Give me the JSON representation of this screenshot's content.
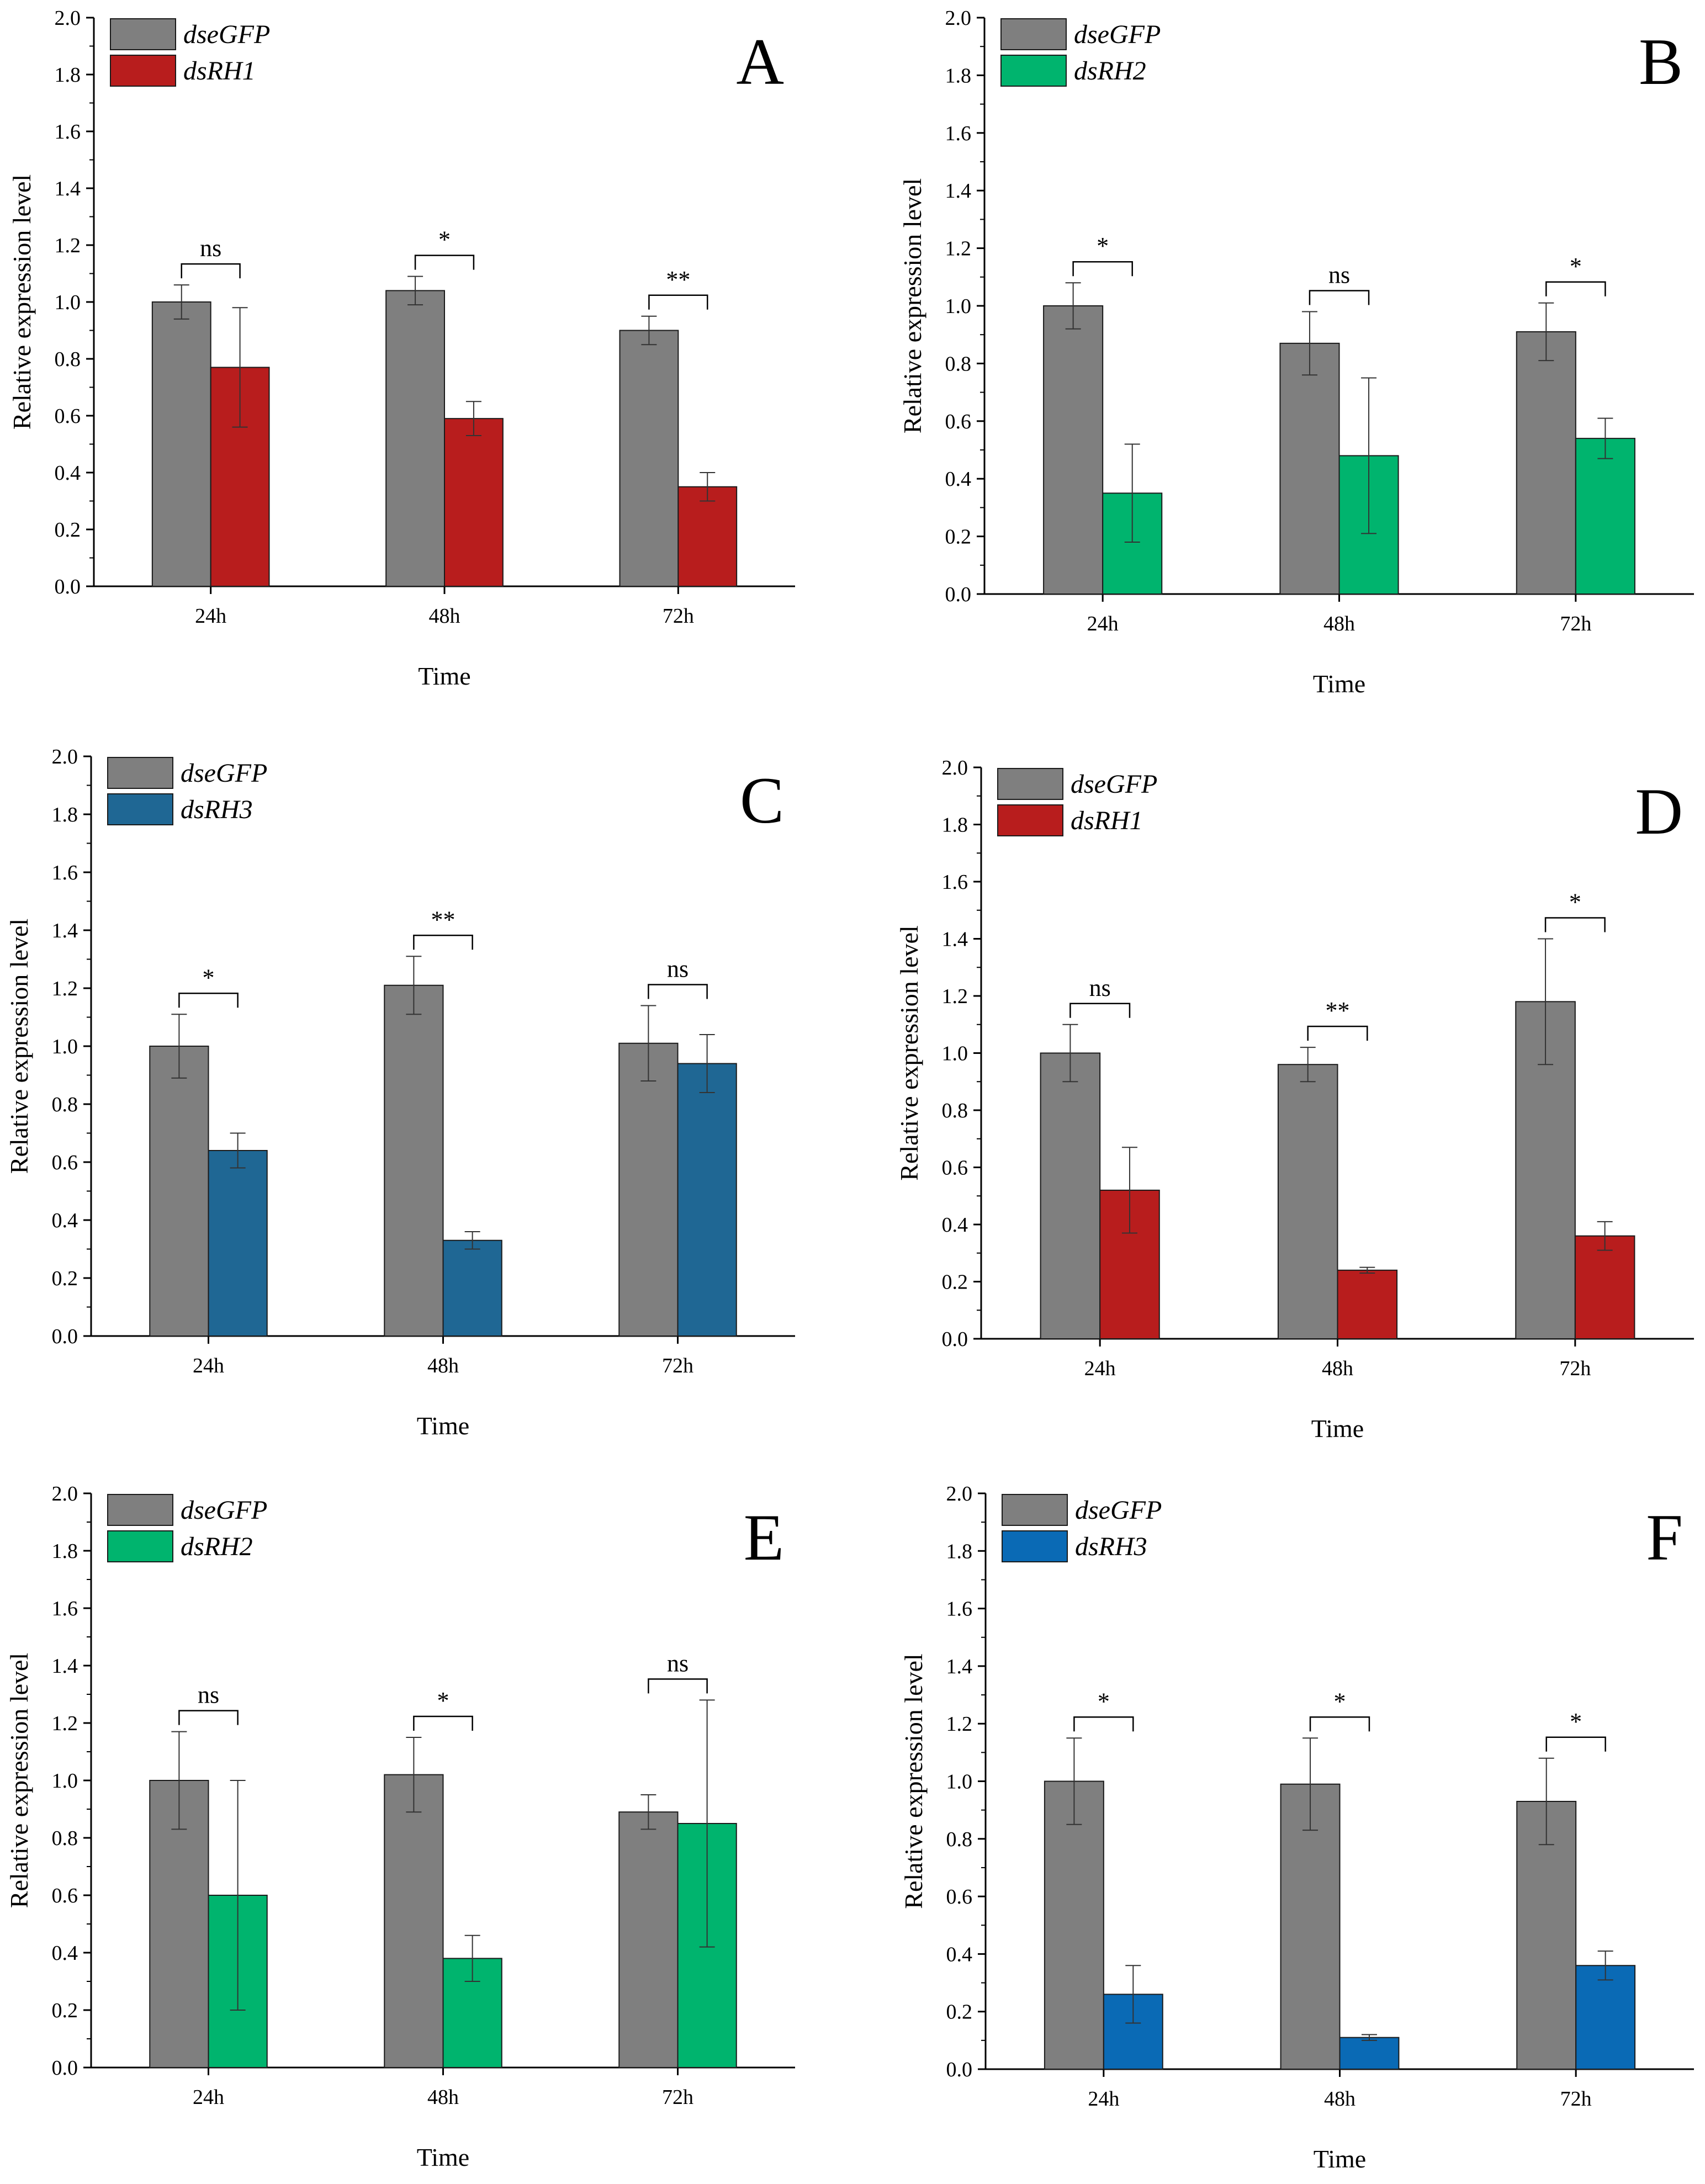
{
  "chart_data": [
    {
      "type": "bar",
      "panel": "A",
      "categories": [
        "24h",
        "48h",
        "72h"
      ],
      "series": [
        {
          "name": "dseGFP",
          "color": "#7f7f7f",
          "values": [
            1.0,
            1.04,
            0.9
          ],
          "errors": [
            0.06,
            0.05,
            0.05
          ]
        },
        {
          "name": "dsRH1",
          "color": "#b81d1d",
          "values": [
            0.77,
            0.59,
            0.35
          ],
          "errors": [
            0.21,
            0.06,
            0.05
          ]
        }
      ],
      "significance": [
        "ns",
        "*",
        "**"
      ],
      "xlabel": "Time",
      "ylabel": "Relative expression level",
      "ylim": [
        0,
        2.0
      ],
      "yticks": [
        "0.0",
        "0.2",
        "0.4",
        "0.6",
        "0.8",
        "1.0",
        "1.2",
        "1.4",
        "1.6",
        "1.8",
        "2.0"
      ],
      "legend": "top-left"
    },
    {
      "type": "bar",
      "panel": "B",
      "categories": [
        "24h",
        "48h",
        "72h"
      ],
      "series": [
        {
          "name": "dseGFP",
          "color": "#7f7f7f",
          "values": [
            1.0,
            0.87,
            0.91
          ],
          "errors": [
            0.08,
            0.11,
            0.1
          ]
        },
        {
          "name": "dsRH2",
          "color": "#00b46e",
          "values": [
            0.35,
            0.48,
            0.54
          ],
          "errors": [
            0.17,
            0.27,
            0.07
          ]
        }
      ],
      "significance": [
        "*",
        "ns",
        "*"
      ],
      "xlabel": "Time",
      "ylabel": "Relative expression level",
      "ylim": [
        0,
        2.0
      ],
      "yticks": [
        "0.0",
        "0.2",
        "0.4",
        "0.6",
        "0.8",
        "1.0",
        "1.2",
        "1.4",
        "1.6",
        "1.8",
        "2.0"
      ],
      "legend": "top-left"
    },
    {
      "type": "bar",
      "panel": "C",
      "categories": [
        "24h",
        "48h",
        "72h"
      ],
      "series": [
        {
          "name": "dseGFP",
          "color": "#7f7f7f",
          "values": [
            1.0,
            1.21,
            1.01
          ],
          "errors": [
            0.11,
            0.1,
            0.13
          ]
        },
        {
          "name": "dsRH3",
          "color": "#1f6794",
          "values": [
            0.64,
            0.33,
            0.94
          ],
          "errors": [
            0.06,
            0.03,
            0.1
          ]
        }
      ],
      "significance": [
        "*",
        "**",
        "ns"
      ],
      "xlabel": "Time",
      "ylabel": "Relative expression level",
      "ylim": [
        0,
        2.0
      ],
      "yticks": [
        "0.0",
        "0.2",
        "0.4",
        "0.6",
        "0.8",
        "1.0",
        "1.2",
        "1.4",
        "1.6",
        "1.8",
        "2.0"
      ],
      "legend": "top-left"
    },
    {
      "type": "bar",
      "panel": "D",
      "categories": [
        "24h",
        "48h",
        "72h"
      ],
      "series": [
        {
          "name": "dseGFP",
          "color": "#7f7f7f",
          "values": [
            1.0,
            0.96,
            1.18
          ],
          "errors": [
            0.1,
            0.06,
            0.22
          ]
        },
        {
          "name": "dsRH1",
          "color": "#b81d1d",
          "values": [
            0.52,
            0.24,
            0.36
          ],
          "errors": [
            0.15,
            0.01,
            0.05
          ]
        }
      ],
      "significance": [
        "ns",
        "**",
        "*"
      ],
      "xlabel": "Time",
      "ylabel": "Relative expression level",
      "ylim": [
        0,
        2.0
      ],
      "yticks": [
        "0.0",
        "0.2",
        "0.4",
        "0.6",
        "0.8",
        "1.0",
        "1.2",
        "1.4",
        "1.6",
        "1.8",
        "2.0"
      ],
      "legend": "top-left"
    },
    {
      "type": "bar",
      "panel": "E",
      "categories": [
        "24h",
        "48h",
        "72h"
      ],
      "series": [
        {
          "name": "dseGFP",
          "color": "#7f7f7f",
          "values": [
            1.0,
            1.02,
            0.89
          ],
          "errors": [
            0.17,
            0.13,
            0.06
          ]
        },
        {
          "name": "dsRH2",
          "color": "#00b46e",
          "values": [
            0.6,
            0.38,
            0.85
          ],
          "errors": [
            0.4,
            0.08,
            0.43
          ]
        }
      ],
      "significance": [
        "ns",
        "*",
        "ns"
      ],
      "xlabel": "Time",
      "ylabel": "Relative expression level",
      "ylim": [
        0,
        2.0
      ],
      "yticks": [
        "0.0",
        "0.2",
        "0.4",
        "0.6",
        "0.8",
        "1.0",
        "1.2",
        "1.4",
        "1.6",
        "1.8",
        "2.0"
      ],
      "legend": "top-left"
    },
    {
      "type": "bar",
      "panel": "F",
      "categories": [
        "24h",
        "48h",
        "72h"
      ],
      "series": [
        {
          "name": "dseGFP",
          "color": "#7f7f7f",
          "values": [
            1.0,
            0.99,
            0.93
          ],
          "errors": [
            0.15,
            0.16,
            0.15
          ]
        },
        {
          "name": "dsRH3",
          "color": "#0a6ab5",
          "values": [
            0.26,
            0.11,
            0.36
          ],
          "errors": [
            0.1,
            0.01,
            0.05
          ]
        }
      ],
      "significance": [
        "*",
        "*",
        "*"
      ],
      "xlabel": "Time",
      "ylabel": "Relative expression level",
      "ylim": [
        0,
        2.0
      ],
      "yticks": [
        "0.0",
        "0.2",
        "0.4",
        "0.6",
        "0.8",
        "1.0",
        "1.2",
        "1.4",
        "1.6",
        "1.8",
        "2.0"
      ],
      "legend": "top-left"
    }
  ]
}
